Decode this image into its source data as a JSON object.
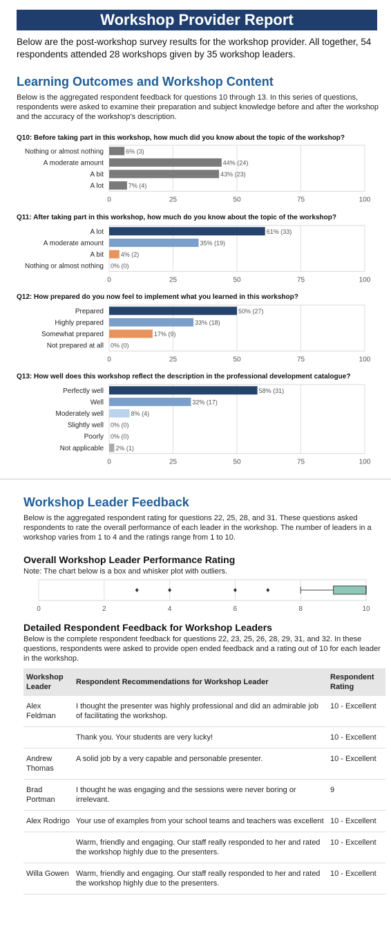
{
  "header": {
    "title": "Workshop Provider Report",
    "intro": "Below are the post-workshop survey results for the workshop provider. All together, 54 respondents attended 28 workshops given by 35 workshop leaders."
  },
  "learning": {
    "heading": "Learning Outcomes and Workshop Content",
    "description": "Below is the aggregated respondent feedback for questions 10 through 13. In this series of questions, respondents were asked to examine their preparation and subject knowledge before and after the workshop and the accuracy of the workshop's description."
  },
  "chart_data": [
    {
      "type": "bar",
      "orientation": "horizontal",
      "title": "Q10: Before taking part in this workshop, how much did you know about the topic of the workshop?",
      "categories": [
        "Nothing or almost nothing",
        "A moderate amount",
        "A bit",
        "A lot"
      ],
      "values": [
        6,
        44,
        43,
        7
      ],
      "labels": [
        "6% (3)",
        "44% (24)",
        "43% (23)",
        "7% (4)"
      ],
      "colors": [
        "#7a7a7a",
        "#7a7a7a",
        "#7a7a7a",
        "#7a7a7a"
      ],
      "xlim": [
        0,
        100
      ],
      "ticks": [
        0,
        25,
        50,
        75,
        100
      ],
      "grid": true
    },
    {
      "type": "bar",
      "orientation": "horizontal",
      "title": "Q11: After taking part in this workshop, how much do you know about the topic of the workshop?",
      "categories": [
        "A lot",
        "A moderate amount",
        "A bit",
        "Nothing or almost nothing"
      ],
      "values": [
        61,
        35,
        4,
        0
      ],
      "labels": [
        "61% (33)",
        "35% (19)",
        "4% (2)",
        "0% (0)"
      ],
      "colors": [
        "#26436b",
        "#7a9fca",
        "#e8935b",
        "#bbbbbb"
      ],
      "xlim": [
        0,
        100
      ],
      "ticks": [
        0,
        25,
        50,
        75,
        100
      ],
      "grid": true
    },
    {
      "type": "bar",
      "orientation": "horizontal",
      "title": "Q12: How prepared do you now feel to implement what you learned in this workshop?",
      "categories": [
        "Prepared",
        "Highly prepared",
        "Somewhat prepared",
        "Not prepared at all"
      ],
      "values": [
        50,
        33,
        17,
        0
      ],
      "labels": [
        "50% (27)",
        "33% (18)",
        "17% (9)",
        "0% (0)"
      ],
      "colors": [
        "#26436b",
        "#7a9fca",
        "#e8935b",
        "#bbbbbb"
      ],
      "xlim": [
        0,
        100
      ],
      "ticks": [
        0,
        25,
        50,
        75,
        100
      ],
      "grid": true
    },
    {
      "type": "bar",
      "orientation": "horizontal",
      "title": "Q13: How well does this workshop reflect the description in the professional development catalogue?",
      "categories": [
        "Perfectly well",
        "Well",
        "Moderately well",
        "Slightly well",
        "Poorly",
        "Not applicable"
      ],
      "values": [
        58,
        32,
        8,
        0,
        0,
        2
      ],
      "labels": [
        "58% (31)",
        "32% (17)",
        "8% (4)",
        "0% (0)",
        "0% (0)",
        "2% (1)"
      ],
      "colors": [
        "#26436b",
        "#7a9fca",
        "#bcd3ee",
        "#bbbbbb",
        "#bbbbbb",
        "#aaaaaa"
      ],
      "xlim": [
        0,
        100
      ],
      "ticks": [
        0,
        25,
        50,
        75,
        100
      ],
      "grid": true
    },
    {
      "type": "box",
      "orientation": "horizontal",
      "title": "Overall Workshop Leader Performance Rating",
      "note": "Note: The chart below is a box and whisker plot with outliers.",
      "whisker_low": 8.0,
      "q1": 9.0,
      "median": 10.0,
      "q3": 10.0,
      "whisker_high": 10.0,
      "outliers": [
        3,
        4,
        6,
        7
      ],
      "box_color": "#8ec7b6",
      "xlim": [
        0,
        10
      ],
      "ticks": [
        0,
        2,
        4,
        6,
        8,
        10
      ],
      "grid": true
    }
  ],
  "leader_feedback": {
    "heading": "Workshop Leader Feedback",
    "description": "Below is the aggregated respondent rating for questions 22, 25, 28, and 31. These questions asked respondents to rate the overall performance of each leader in the workshop. The number of leaders in a workshop varies from 1 to 4 and the ratings range from 1 to 10."
  },
  "detailed": {
    "heading": "Detailed Respondent Feedback for Workshop Leaders",
    "description": "Below is the complete respondent feedback for questions 22, 23, 25, 26, 28, 29, 31, and 32. In these questions, respondents were asked to provide open ended feedback and a rating out of 10 for each leader in the workshop.",
    "columns": [
      "Workshop Leader",
      "Respondent Recommendations for Workshop Leader",
      "Respondent Rating"
    ],
    "rows": [
      [
        "Alex Feldman",
        "I thought the presenter was highly professional and did an admirable job of facilitating the workshop.",
        "10 - Excellent"
      ],
      [
        "",
        "Thank you. Your students are very lucky!",
        "10 - Excellent"
      ],
      [
        "Andrew Thomas",
        "A solid job by a very capable and personable presenter.",
        "10 - Excellent"
      ],
      [
        "Brad Portman",
        "I thought he was engaging and the sessions were never boring or irrelevant.",
        "9"
      ],
      [
        "Alex Rodrigo",
        "Your use of examples from your school teams and teachers was excellent",
        "10 - Excellent"
      ],
      [
        "",
        "Warm, friendly and engaging. Our staff really responded to her and rated the workshop highly due to the presenters.",
        "10 - Excellent"
      ],
      [
        "Willa Gowen",
        "Warm, friendly and engaging. Our staff really responded to her and rated the workshop highly due to the presenters.",
        "10 - Excellent"
      ]
    ]
  }
}
